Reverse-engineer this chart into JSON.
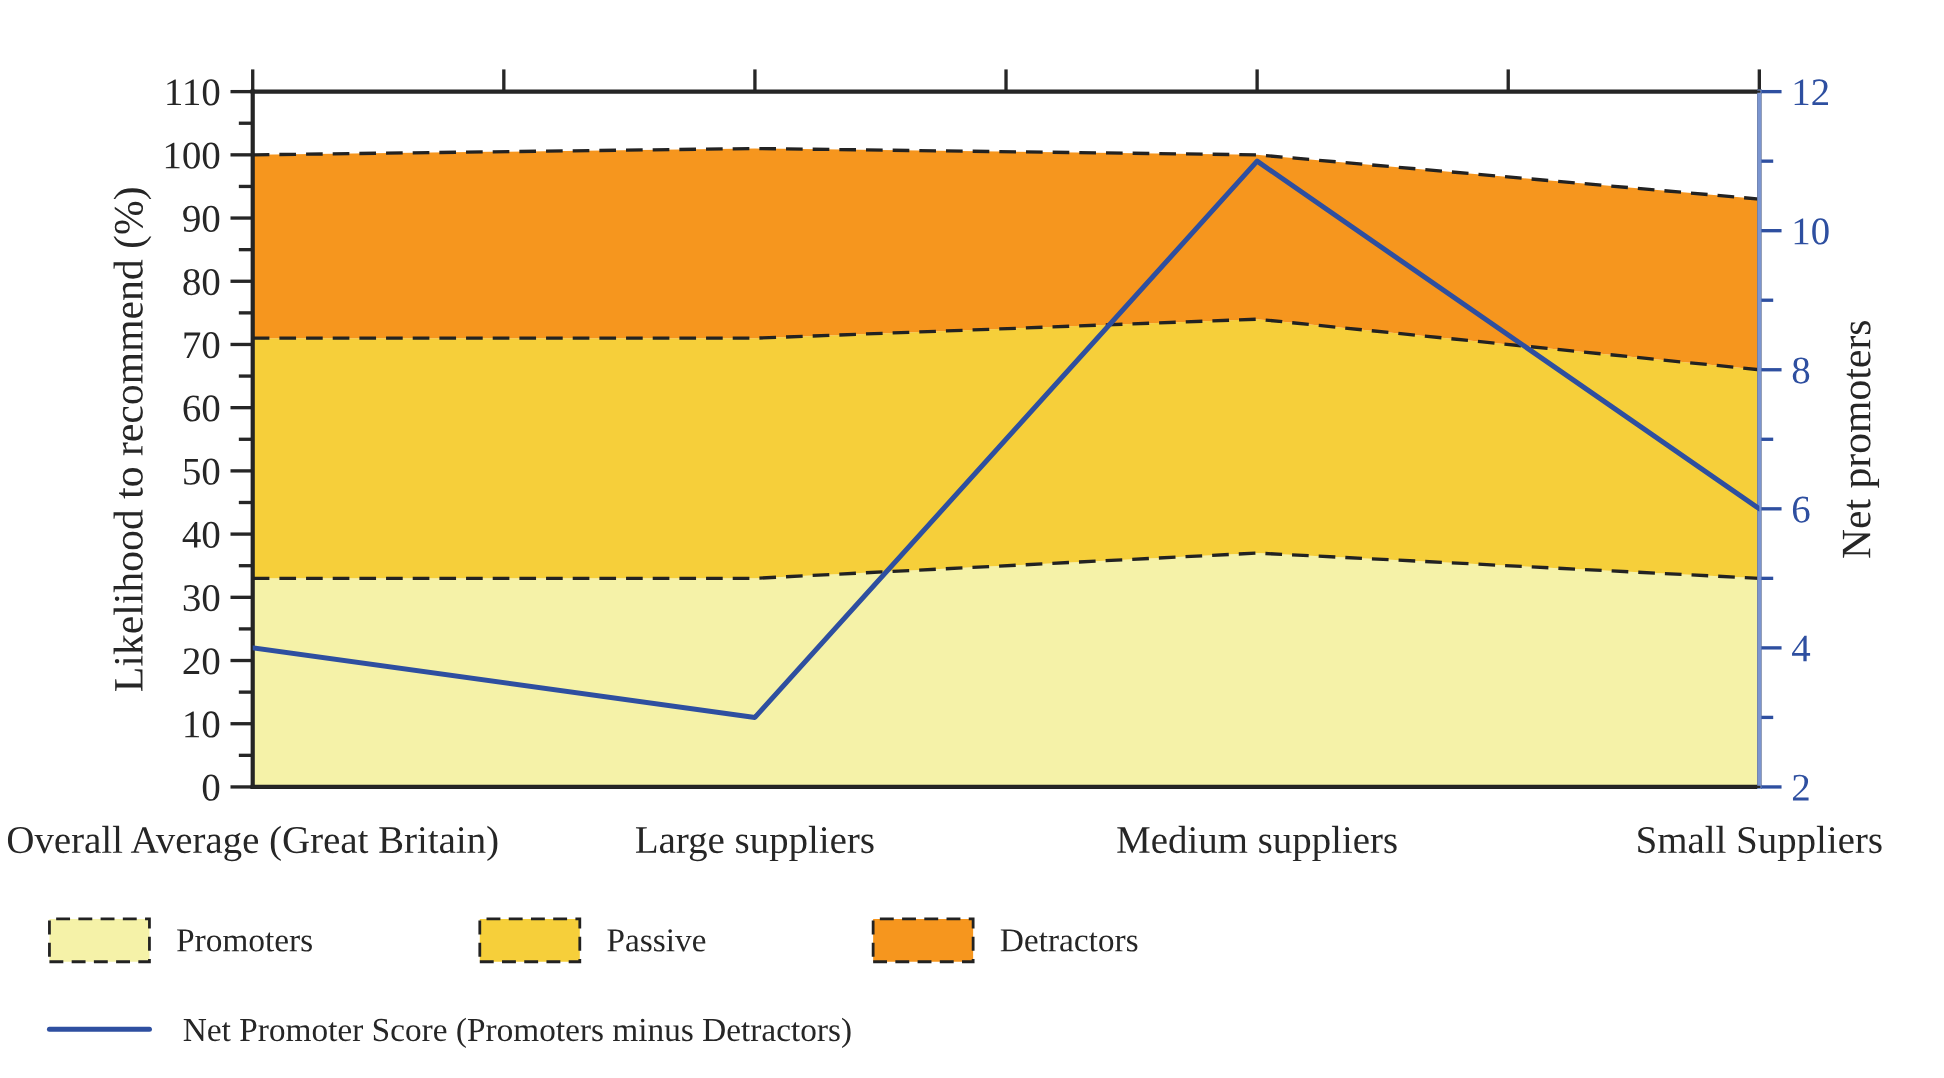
{
  "chart_data": {
    "type": "area",
    "stacked": true,
    "categories": [
      "Overall Average (Great Britain)",
      "Large suppliers",
      "Medium suppliers",
      "Small Suppliers"
    ],
    "ylabel": "Likelihood to recommend (%)",
    "y2label": "Net promoters",
    "ylim": [
      0,
      110
    ],
    "yticks": [
      0,
      10,
      20,
      30,
      40,
      50,
      60,
      70,
      80,
      90,
      100,
      110
    ],
    "y2lim": [
      2,
      12
    ],
    "y2ticks": [
      2,
      4,
      6,
      8,
      10,
      12
    ],
    "legend": "bottom",
    "line_style": "dashed",
    "marker": "none",
    "series": [
      {
        "name": "Promoters",
        "color": "#f5f2a8",
        "values": [
          33,
          33,
          37,
          33
        ]
      },
      {
        "name": "Passive",
        "color": "#f6cf3a",
        "values": [
          38,
          38,
          37,
          33
        ]
      },
      {
        "name": "Detractors",
        "color": "#f6961e",
        "values": [
          29,
          30,
          26,
          27
        ]
      },
      {
        "name": "Net Promoter Score (Promoters minus Detractors)",
        "type": "line",
        "axis": "y2",
        "line_style": "solid",
        "color": "#2e4fa0",
        "values": [
          4,
          3,
          11,
          6
        ]
      }
    ]
  }
}
